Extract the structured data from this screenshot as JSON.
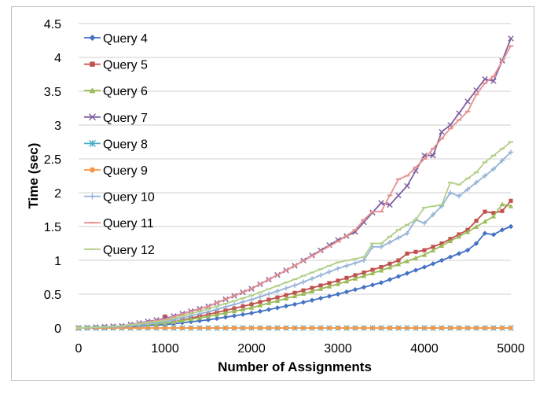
{
  "chart_data": {
    "type": "line",
    "title": "",
    "xlabel": "Number of Assignments",
    "ylabel": "Time (sec)",
    "xlim": [
      0,
      5000
    ],
    "ylim": [
      0,
      4.5
    ],
    "x_ticks": [
      "0",
      "1000",
      "2000",
      "3000",
      "4000",
      "5000"
    ],
    "y_ticks": [
      "0",
      "0.5",
      "1",
      "1.5",
      "2",
      "2.5",
      "3",
      "3.5",
      "4",
      "4.5"
    ],
    "grid": "horizontal",
    "legend_position": "top-left",
    "series": [
      {
        "name": "Query 4",
        "color": "#4472C4",
        "marker": "diamond",
        "points": [
          [
            0,
            0
          ],
          [
            500,
            0.01
          ],
          [
            1000,
            0.05
          ],
          [
            1500,
            0.12
          ],
          [
            2000,
            0.22
          ],
          [
            2500,
            0.35
          ],
          [
            3000,
            0.5
          ],
          [
            3500,
            0.67
          ],
          [
            4000,
            0.9
          ],
          [
            4500,
            1.15
          ],
          [
            4600,
            1.25
          ],
          [
            4700,
            1.4
          ],
          [
            4800,
            1.38
          ],
          [
            4900,
            1.45
          ],
          [
            5000,
            1.5
          ]
        ]
      },
      {
        "name": "Query 5",
        "color": "#C0504D",
        "marker": "square",
        "points": [
          [
            0,
            0
          ],
          [
            500,
            0.02
          ],
          [
            900,
            0.06
          ],
          [
            1000,
            0.17
          ],
          [
            1100,
            0.09
          ],
          [
            1500,
            0.2
          ],
          [
            2000,
            0.35
          ],
          [
            2500,
            0.52
          ],
          [
            3000,
            0.7
          ],
          [
            3500,
            0.9
          ],
          [
            3700,
            1.0
          ],
          [
            3800,
            1.1
          ],
          [
            4000,
            1.15
          ],
          [
            4200,
            1.25
          ],
          [
            4500,
            1.45
          ],
          [
            4700,
            1.72
          ],
          [
            4800,
            1.7
          ],
          [
            4900,
            1.73
          ],
          [
            5000,
            1.88
          ]
        ]
      },
      {
        "name": "Query 6",
        "color": "#9BBB59",
        "marker": "triangle",
        "points": [
          [
            0,
            0
          ],
          [
            500,
            0.02
          ],
          [
            1000,
            0.07
          ],
          [
            1500,
            0.17
          ],
          [
            2000,
            0.3
          ],
          [
            2500,
            0.47
          ],
          [
            3000,
            0.65
          ],
          [
            3500,
            0.85
          ],
          [
            4000,
            1.08
          ],
          [
            4500,
            1.42
          ],
          [
            4800,
            1.65
          ],
          [
            4900,
            1.83
          ],
          [
            5000,
            1.8
          ]
        ]
      },
      {
        "name": "Query 7",
        "color": "#7F5F9F",
        "marker": "x",
        "points": [
          [
            0,
            0
          ],
          [
            500,
            0.03
          ],
          [
            1000,
            0.14
          ],
          [
            1500,
            0.32
          ],
          [
            2000,
            0.58
          ],
          [
            2500,
            0.92
          ],
          [
            3000,
            1.3
          ],
          [
            3200,
            1.42
          ],
          [
            3500,
            1.85
          ],
          [
            3600,
            1.82
          ],
          [
            3800,
            2.1
          ],
          [
            4000,
            2.55
          ],
          [
            4100,
            2.55
          ],
          [
            4200,
            2.9
          ],
          [
            4300,
            3.0
          ],
          [
            4500,
            3.35
          ],
          [
            4700,
            3.68
          ],
          [
            4800,
            3.65
          ],
          [
            4900,
            3.95
          ],
          [
            5000,
            4.28
          ]
        ]
      },
      {
        "name": "Query 8",
        "color": "#4BACC6",
        "marker": "asterisk",
        "points": [
          [
            0,
            0
          ],
          [
            1000,
            0
          ],
          [
            2000,
            0
          ],
          [
            3000,
            0
          ],
          [
            4000,
            0
          ],
          [
            5000,
            0
          ]
        ]
      },
      {
        "name": "Query 9",
        "color": "#F79646",
        "marker": "circle",
        "points": [
          [
            0,
            0
          ],
          [
            500,
            0
          ],
          [
            1000,
            0
          ],
          [
            1500,
            0
          ],
          [
            2000,
            0
          ],
          [
            2500,
            0
          ],
          [
            3000,
            0
          ],
          [
            3500,
            0
          ],
          [
            4000,
            0
          ],
          [
            4500,
            0
          ],
          [
            5000,
            0
          ]
        ]
      },
      {
        "name": "Query 10",
        "color": "#95B3D7",
        "marker": "plus",
        "points": [
          [
            0,
            0
          ],
          [
            500,
            0.02
          ],
          [
            1000,
            0.09
          ],
          [
            1500,
            0.24
          ],
          [
            2000,
            0.42
          ],
          [
            2500,
            0.63
          ],
          [
            3000,
            0.88
          ],
          [
            3300,
            1.0
          ],
          [
            3400,
            1.2
          ],
          [
            3500,
            1.2
          ],
          [
            3800,
            1.4
          ],
          [
            3900,
            1.6
          ],
          [
            4000,
            1.55
          ],
          [
            4200,
            1.8
          ],
          [
            4300,
            2.0
          ],
          [
            4400,
            1.95
          ],
          [
            4600,
            2.15
          ],
          [
            4800,
            2.35
          ],
          [
            5000,
            2.6
          ]
        ]
      },
      {
        "name": "Query 11",
        "color": "#E6918F",
        "marker": "dash",
        "points": [
          [
            0,
            0
          ],
          [
            500,
            0.03
          ],
          [
            1000,
            0.13
          ],
          [
            1500,
            0.32
          ],
          [
            2000,
            0.58
          ],
          [
            2500,
            0.92
          ],
          [
            3000,
            1.28
          ],
          [
            3200,
            1.45
          ],
          [
            3300,
            1.6
          ],
          [
            3400,
            1.72
          ],
          [
            3500,
            1.72
          ],
          [
            3700,
            2.2
          ],
          [
            3800,
            2.25
          ],
          [
            4000,
            2.5
          ],
          [
            4200,
            2.8
          ],
          [
            4300,
            2.95
          ],
          [
            4500,
            3.2
          ],
          [
            4600,
            3.45
          ],
          [
            4700,
            3.62
          ],
          [
            4800,
            3.72
          ],
          [
            5000,
            4.17
          ]
        ]
      },
      {
        "name": "Query 12",
        "color": "#B2D08A",
        "marker": "dash",
        "points": [
          [
            0,
            0
          ],
          [
            500,
            0.03
          ],
          [
            1000,
            0.11
          ],
          [
            1500,
            0.28
          ],
          [
            2000,
            0.48
          ],
          [
            2500,
            0.72
          ],
          [
            3000,
            0.97
          ],
          [
            3300,
            1.05
          ],
          [
            3400,
            1.25
          ],
          [
            3500,
            1.25
          ],
          [
            3700,
            1.45
          ],
          [
            3900,
            1.6
          ],
          [
            4000,
            1.78
          ],
          [
            4200,
            1.82
          ],
          [
            4300,
            2.15
          ],
          [
            4400,
            2.12
          ],
          [
            4600,
            2.3
          ],
          [
            4700,
            2.45
          ],
          [
            4800,
            2.55
          ],
          [
            5000,
            2.75
          ]
        ]
      }
    ]
  }
}
